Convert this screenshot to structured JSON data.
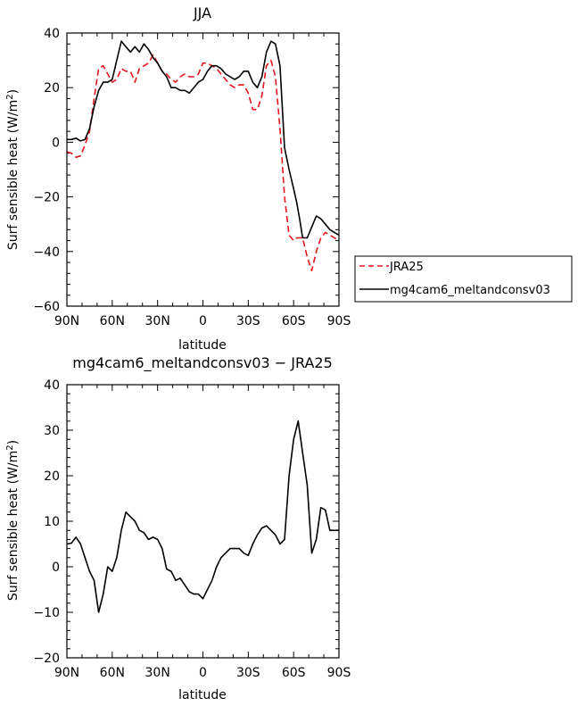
{
  "chart_data": [
    {
      "type": "line",
      "title": "JJA",
      "xlabel": "latitude",
      "ylabel": "Surf sensible heat (W/m²)",
      "ylabel_main": "Surf sensible heat (W/m",
      "ylabel_sup": "2",
      "ylabel_tail": ")",
      "xlim": [
        90,
        -90
      ],
      "ylim": [
        -60,
        40
      ],
      "xticks": [
        90,
        60,
        30,
        0,
        -30,
        -60,
        -90
      ],
      "xtick_labels": [
        "90N",
        "60N",
        "30N",
        "0",
        "30S",
        "60S",
        "90S"
      ],
      "yticks": [
        -60,
        -40,
        -20,
        0,
        20,
        40
      ],
      "ytick_labels": [
        "−60",
        "−40",
        "−20",
        "0",
        "20",
        "40"
      ],
      "legend_position": "right-outside",
      "series": [
        {
          "name": "JRA25",
          "color": "#e8141c",
          "dash": "dashed",
          "x": [
            90,
            87,
            84,
            81,
            78,
            75,
            72,
            69,
            66,
            63,
            60,
            57,
            54,
            51,
            48,
            45,
            42,
            39,
            36,
            33,
            30,
            27,
            24,
            21,
            18,
            15,
            12,
            9,
            6,
            3,
            0,
            -3,
            -6,
            -9,
            -12,
            -15,
            -18,
            -21,
            -24,
            -27,
            -30,
            -33,
            -36,
            -39,
            -42,
            -45,
            -48,
            -51,
            -54,
            -57,
            -60,
            -62,
            -64,
            -66,
            -69,
            -72,
            -75,
            -78,
            -81,
            -84,
            -87,
            -90
          ],
          "y": [
            -3.5,
            -4,
            -5.5,
            -5,
            -1,
            4,
            16,
            27,
            28,
            25,
            22,
            23,
            27,
            26,
            26,
            22,
            27,
            28,
            29,
            32,
            29,
            26,
            25,
            23,
            22,
            24,
            25,
            24,
            24,
            25,
            29,
            29,
            28,
            27,
            25,
            23,
            21,
            20,
            21,
            21,
            18,
            12,
            12,
            17,
            28,
            30,
            24,
            5,
            -20,
            -34,
            -36,
            -35,
            -35,
            -35,
            -42,
            -47,
            -40,
            -35,
            -33,
            -34,
            -35,
            -36
          ],
          "trim_end": 48
        },
        {
          "name": "mg4cam6_meltandconsv03",
          "color": "#000000",
          "dash": "solid",
          "x": [
            90,
            87,
            84,
            81,
            78,
            75,
            72,
            69,
            66,
            63,
            60,
            57,
            54,
            51,
            48,
            45,
            42,
            39,
            36,
            33,
            30,
            27,
            24,
            21,
            18,
            15,
            12,
            9,
            6,
            3,
            0,
            -3,
            -6,
            -9,
            -12,
            -15,
            -18,
            -21,
            -24,
            -27,
            -30,
            -33,
            -36,
            -39,
            -42,
            -45,
            -48,
            -51,
            -54,
            -57,
            -60,
            -62,
            -64,
            -66,
            -69,
            -72,
            -75,
            -78,
            -81,
            -84,
            -87,
            -90
          ],
          "y": [
            1,
            1,
            1.5,
            0.5,
            1,
            5,
            13,
            19,
            22,
            22,
            23,
            30,
            37,
            35,
            33,
            35,
            33,
            36,
            34,
            31,
            29,
            26,
            24,
            20,
            20,
            19,
            19,
            18,
            20,
            22,
            23,
            26,
            28,
            28,
            27,
            25,
            24,
            23,
            24,
            26,
            26,
            22,
            20,
            24,
            33,
            37,
            36,
            28,
            -2,
            -10,
            -17,
            -22,
            -28,
            -35,
            -35,
            -31,
            -27,
            -28,
            -30,
            -32,
            -33,
            -34
          ],
          "trim_end": 48
        }
      ]
    },
    {
      "type": "line",
      "title": "mg4cam6_meltandconsv03 − JRA25",
      "xlabel": "latitude",
      "ylabel": "Surf sensible heat (W/m²)",
      "ylabel_main": "Surf sensible heat (W/m",
      "ylabel_sup": "2",
      "ylabel_tail": ")",
      "xlim": [
        90,
        -90
      ],
      "ylim": [
        -20,
        40
      ],
      "xticks": [
        90,
        60,
        30,
        0,
        -30,
        -60,
        -90
      ],
      "xtick_labels": [
        "90N",
        "60N",
        "30N",
        "0",
        "30S",
        "60S",
        "90S"
      ],
      "yticks": [
        -20,
        -10,
        0,
        10,
        20,
        30,
        40
      ],
      "ytick_labels": [
        "−20",
        "−10",
        "0",
        "10",
        "20",
        "30",
        "40"
      ],
      "series": [
        {
          "name": "mg4cam6_meltandconsv03 − JRA25",
          "color": "#000000",
          "dash": "solid",
          "x": [
            90,
            87,
            84,
            81,
            78,
            75,
            72,
            69,
            66,
            63,
            60,
            57,
            54,
            51,
            48,
            45,
            42,
            39,
            36,
            33,
            30,
            27,
            24,
            21,
            18,
            15,
            12,
            9,
            6,
            3,
            0,
            -3,
            -6,
            -9,
            -12,
            -15,
            -18,
            -21,
            -24,
            -27,
            -30,
            -33,
            -36,
            -39,
            -42,
            -45,
            -48,
            -51,
            -54,
            -57,
            -60,
            -63,
            -66,
            -69,
            -72,
            -75,
            -78,
            -81,
            -84,
            -87,
            -90
          ],
          "y": [
            5,
            5.2,
            6.5,
            5,
            2,
            -1,
            -3,
            -10,
            -6,
            0,
            -1,
            2,
            8,
            12,
            11,
            10,
            8,
            7.5,
            6,
            6.5,
            6,
            4,
            -0.5,
            -1,
            -3,
            -2.5,
            -4,
            -5.5,
            -6,
            -6,
            -7,
            -5,
            -3,
            0,
            2,
            3,
            4,
            4,
            4,
            3,
            2.5,
            5,
            7,
            8.5,
            9,
            8,
            7,
            5,
            6,
            20,
            28,
            32,
            25,
            18,
            3,
            6,
            13,
            12.5,
            8,
            8,
            8
          ],
          "trim_end": 58
        }
      ]
    }
  ]
}
